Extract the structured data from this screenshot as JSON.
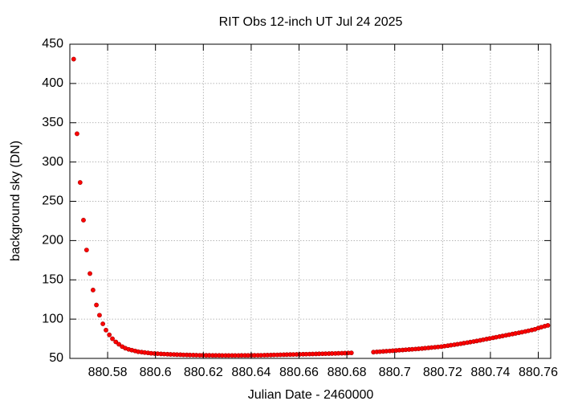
{
  "chart_data": {
    "type": "scatter",
    "title": "RIT Obs 12-inch UT Jul 24 2025",
    "xlabel": "Julian Date - 2460000",
    "ylabel": "background sky (DN)",
    "color": "#ff0000",
    "grid": true,
    "xlim": [
      880.5642,
      880.7652
    ],
    "ylim": [
      50,
      450
    ],
    "xticks": [
      880.58,
      880.6,
      880.62,
      880.64,
      880.66,
      880.68,
      880.7,
      880.72,
      880.74,
      880.76
    ],
    "yticks": [
      50,
      100,
      150,
      200,
      250,
      300,
      350,
      400,
      450
    ],
    "x": [
      880.5658,
      880.5672,
      880.5685,
      880.5699,
      880.5712,
      880.5726,
      880.5739,
      880.5753,
      880.5766,
      880.578,
      880.5793,
      880.5807,
      880.582,
      880.5834,
      880.5847,
      880.5861,
      880.5874,
      880.5888,
      880.5901,
      880.5915,
      880.5928,
      880.5942,
      880.5955,
      880.5969,
      880.5982,
      880.5996,
      880.6009,
      880.6023,
      880.6036,
      880.605,
      880.6063,
      880.6077,
      880.609,
      880.6104,
      880.6117,
      880.6131,
      880.6144,
      880.6158,
      880.6171,
      880.6185,
      880.6198,
      880.6212,
      880.6225,
      880.6239,
      880.6252,
      880.6266,
      880.6279,
      880.6293,
      880.6306,
      880.632,
      880.6333,
      880.6347,
      880.636,
      880.6374,
      880.6387,
      880.6401,
      880.6414,
      880.6428,
      880.6441,
      880.6455,
      880.6468,
      880.6482,
      880.6495,
      880.6509,
      880.6522,
      880.6536,
      880.6549,
      880.6563,
      880.6576,
      880.659,
      880.6603,
      880.6617,
      880.663,
      880.6644,
      880.6657,
      880.6671,
      880.6684,
      880.6698,
      880.6711,
      880.6725,
      880.6738,
      880.6752,
      880.6765,
      880.6779,
      880.6792,
      880.6806,
      880.6819,
      880.6911,
      880.6925,
      880.6938,
      880.6952,
      880.6965,
      880.6979,
      880.6992,
      880.7006,
      880.7019,
      880.7033,
      880.7046,
      880.706,
      880.7073,
      880.7087,
      880.71,
      880.7114,
      880.7127,
      880.7141,
      880.7154,
      880.7168,
      880.7181,
      880.7195,
      880.7208,
      880.7222,
      880.7235,
      880.7249,
      880.7262,
      880.7276,
      880.7289,
      880.7303,
      880.7316,
      880.733,
      880.7343,
      880.7357,
      880.737,
      880.7384,
      880.7397,
      880.7411,
      880.7424,
      880.7438,
      880.7451,
      880.7465,
      880.7478,
      880.7492,
      880.7505,
      880.7519,
      880.7532,
      880.7546,
      880.7559,
      880.7573,
      880.7586,
      880.76,
      880.7613,
      880.7627,
      880.764
    ],
    "values": [
      431,
      336,
      274,
      226,
      188,
      158,
      137,
      118,
      105,
      94,
      86,
      80,
      75,
      71,
      68,
      65,
      63,
      61.5,
      60.5,
      59.5,
      58.5,
      58,
      57.5,
      57,
      56.5,
      56.2,
      56,
      55.7,
      55.5,
      55.3,
      55.1,
      55,
      54.8,
      54.7,
      54.5,
      54.4,
      54.3,
      54.2,
      54.1,
      54,
      54,
      53.9,
      53.9,
      53.8,
      53.8,
      53.8,
      53.7,
      53.7,
      53.7,
      53.7,
      53.7,
      53.7,
      53.8,
      53.8,
      53.8,
      53.9,
      53.9,
      54,
      54,
      54.1,
      54.2,
      54.3,
      54.4,
      54.5,
      54.6,
      54.7,
      54.8,
      54.9,
      55,
      55.1,
      55.2,
      55.3,
      55.4,
      55.5,
      55.6,
      55.7,
      55.8,
      55.9,
      56,
      56.1,
      56.2,
      56.3,
      56.5,
      56.6,
      56.7,
      56.9,
      57,
      58,
      58.3,
      58.6,
      58.9,
      59.2,
      59.5,
      59.8,
      60.1,
      60.4,
      60.7,
      61,
      61.3,
      61.6,
      61.9,
      62.2,
      62.6,
      63,
      63.4,
      63.8,
      64.2,
      64.6,
      65,
      65.6,
      66.2,
      66.8,
      67.4,
      68,
      68.7,
      69.4,
      70.1,
      70.8,
      71.5,
      72.2,
      73,
      73.8,
      74.6,
      75.4,
      76.2,
      77,
      77.8,
      78.6,
      79.4,
      80.2,
      81,
      81.8,
      82.6,
      83.4,
      84.3,
      85.2,
      86.1,
      87,
      88.6,
      89.8,
      91,
      92
    ]
  }
}
